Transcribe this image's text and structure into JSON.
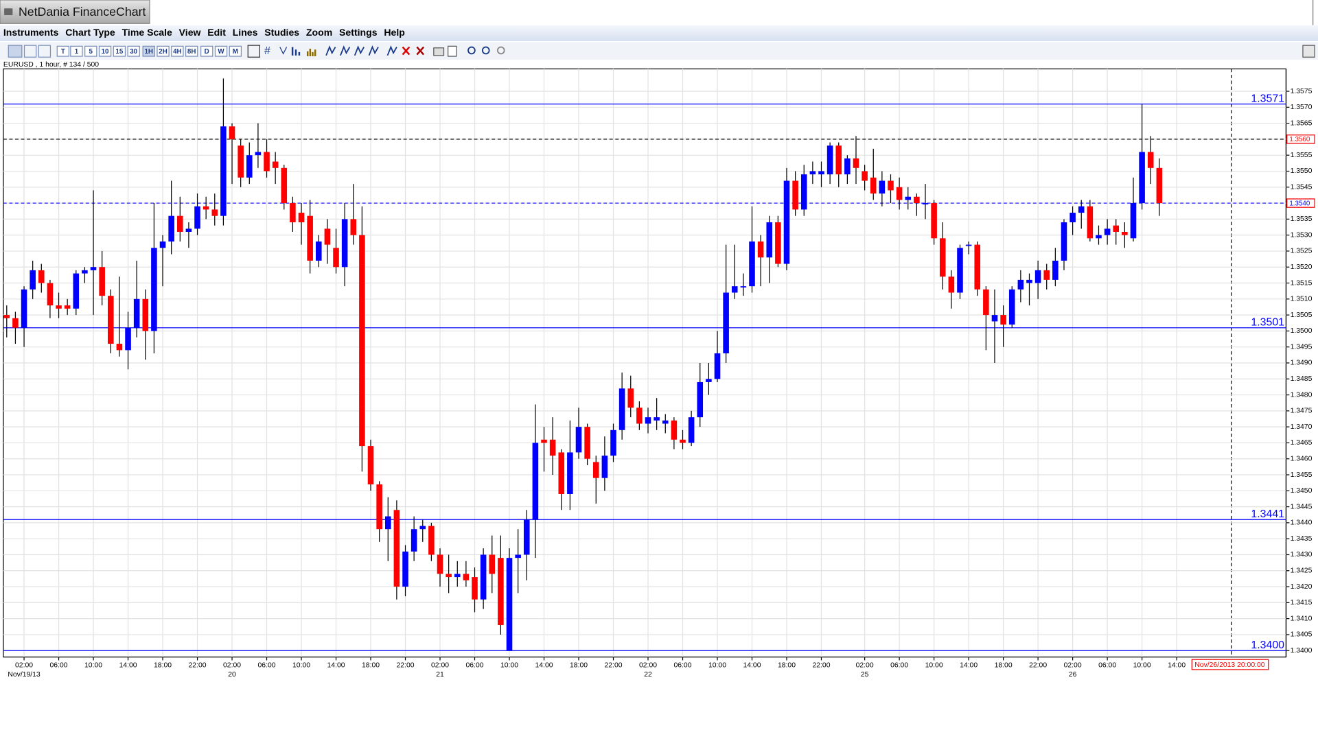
{
  "window_title": "NetDania FinanceChart",
  "menu": [
    "Instruments",
    "Chart Type",
    "Time Scale",
    "View",
    "Edit",
    "Lines",
    "Studies",
    "Zoom",
    "Settings",
    "Help"
  ],
  "toolbar": [
    "T",
    "1",
    "5",
    "10",
    "15",
    "30",
    "1H",
    "2H",
    "4H",
    "8H",
    "D",
    "W",
    "M"
  ],
  "chart_data": {
    "type": "candlestick",
    "instrument_info": "EURUSD , 1 hour, # 134 / 500",
    "up_color": "#0000ff",
    "down_color": "#ff0000",
    "grid": true,
    "ylim": [
      1.3398,
      1.3582
    ],
    "yticks": [
      {
        "value": 1.34,
        "label": "1.3400"
      },
      1.3405,
      {
        "value": 1.341,
        "label": "1.3410"
      },
      1.3415,
      {
        "value": 1.342,
        "label": "1.3420"
      },
      1.3425,
      {
        "value": 1.343,
        "label": "1.3430"
      },
      1.3435,
      {
        "value": 1.344,
        "label": "1.3440"
      },
      1.3445,
      {
        "value": 1.345,
        "label": "1.3450"
      },
      1.3455,
      {
        "value": 1.346,
        "label": "1.3460"
      },
      1.3465,
      {
        "value": 1.347,
        "label": "1.3470"
      },
      1.3475,
      {
        "value": 1.348,
        "label": "1.3480"
      },
      1.3485,
      {
        "value": 1.349,
        "label": "1.3490"
      },
      1.3495,
      {
        "value": 1.35,
        "label": "1.3500"
      },
      1.3505,
      {
        "value": 1.351,
        "label": "1.3510"
      },
      1.3515,
      {
        "value": 1.352,
        "label": "1.3520"
      },
      1.3525,
      {
        "value": 1.353,
        "label": "1.3530"
      },
      1.3535,
      {
        "value": 1.354,
        "label": "1.3540"
      },
      1.3545,
      {
        "value": 1.355,
        "label": "1.3550"
      },
      1.3555,
      {
        "value": 1.356,
        "label": "1.3560"
      },
      1.3565,
      {
        "value": 1.357,
        "label": "1.3570"
      },
      1.3575
    ],
    "hline_color": "#0000ff",
    "hlines": [
      1.3571,
      1.3501,
      1.3441,
      {
        "value": 1.34,
        "label": "1.3400"
      }
    ],
    "price_markers": [
      {
        "value": 1.356,
        "label": "1.3560",
        "line_color": "#000000",
        "text_color": "#ff0000"
      },
      {
        "value": 1.354,
        "label": "1.3540",
        "line_color": "#0000ff",
        "text_color": "#0000ff"
      }
    ],
    "cursor_time": "Nov/26/2013 20:00:00",
    "categories": [
      null,
      null,
      "02:00",
      null,
      null,
      null,
      "06:00",
      null,
      null,
      null,
      "10:00",
      null,
      null,
      null,
      "14:00",
      null,
      null,
      null,
      "18:00",
      null,
      null,
      null,
      "22:00",
      null,
      null,
      null,
      "02:00",
      null,
      null,
      null,
      "06:00",
      null,
      null,
      null,
      "10:00",
      null,
      null,
      null,
      "14:00",
      null,
      null,
      null,
      "18:00",
      null,
      null,
      null,
      "22:00",
      null,
      null,
      null,
      "02:00",
      null,
      null,
      null,
      "06:00",
      null,
      null,
      null,
      "10:00",
      null,
      null,
      null,
      "14:00",
      null,
      null,
      null,
      "18:00",
      null,
      null,
      null,
      "22:00",
      null,
      null,
      null,
      "02:00",
      null,
      null,
      null,
      "06:00",
      null,
      null,
      null,
      "10:00",
      null,
      null,
      null,
      "14:00",
      null,
      null,
      null,
      "18:00",
      null,
      null,
      null,
      "22:00",
      null,
      null,
      null,
      null,
      "02:00",
      null,
      null,
      null,
      "06:00",
      null,
      null,
      null,
      "10:00",
      null,
      null,
      null,
      "14:00",
      null,
      null,
      null,
      "18:00",
      null,
      null,
      null,
      "22:00",
      null,
      null,
      null,
      "02:00",
      null,
      null,
      null,
      "06:00",
      null,
      null,
      null,
      "10:00",
      null,
      null,
      null,
      "14:00"
    ],
    "date_labels": [
      null,
      null,
      "Nov/19/13",
      null,
      null,
      null,
      null,
      null,
      null,
      null,
      null,
      null,
      null,
      null,
      null,
      null,
      null,
      null,
      null,
      null,
      null,
      null,
      null,
      null,
      null,
      null,
      "20",
      null,
      null,
      null,
      null,
      null,
      null,
      null,
      null,
      null,
      null,
      null,
      null,
      null,
      null,
      null,
      null,
      null,
      null,
      null,
      null,
      null,
      null,
      null,
      "21",
      null,
      null,
      null,
      null,
      null,
      null,
      null,
      null,
      null,
      null,
      null,
      null,
      null,
      null,
      null,
      null,
      null,
      null,
      null,
      null,
      null,
      null,
      null,
      "22",
      null,
      null,
      null,
      null,
      null,
      null,
      null,
      null,
      null,
      null,
      null,
      null,
      null,
      null,
      null,
      null,
      null,
      null,
      null,
      null,
      null,
      null,
      null,
      null,
      "25",
      null,
      null,
      null,
      null,
      null,
      null,
      null,
      null,
      null,
      null,
      null,
      null,
      null,
      null,
      null,
      null,
      null,
      null,
      null,
      null,
      null,
      null,
      null,
      "26",
      null,
      null,
      null,
      null,
      null,
      null,
      null,
      null,
      null,
      null,
      null,
      null
    ],
    "ohlc": [
      [
        1.3505,
        1.3508,
        1.3498,
        1.3504
      ],
      [
        1.3504,
        1.3506,
        1.3496,
        1.3501
      ],
      [
        1.3501,
        1.3514,
        1.3495,
        1.3513
      ],
      [
        1.3513,
        1.3522,
        1.351,
        1.3519
      ],
      [
        1.3519,
        1.3521,
        1.3512,
        1.3515
      ],
      [
        1.3515,
        1.3516,
        1.3504,
        1.3508
      ],
      [
        1.3508,
        1.3512,
        1.3504,
        1.3507
      ],
      [
        1.3508,
        1.351,
        1.3505,
        1.3507
      ],
      [
        1.3507,
        1.3519,
        1.3505,
        1.3518
      ],
      [
        1.3518,
        1.352,
        1.3515,
        1.3519
      ],
      [
        1.3519,
        1.3544,
        1.3505,
        1.352
      ],
      [
        1.352,
        1.3525,
        1.3508,
        1.3511
      ],
      [
        1.3511,
        1.3513,
        1.3493,
        1.3496
      ],
      [
        1.3496,
        1.3517,
        1.3492,
        1.3494
      ],
      [
        1.3494,
        1.3506,
        1.3488,
        1.3501
      ],
      [
        1.3501,
        1.3522,
        1.3498,
        1.351
      ],
      [
        1.351,
        1.3513,
        1.3491,
        1.35
      ],
      [
        1.35,
        1.354,
        1.3493,
        1.3526
      ],
      [
        1.3526,
        1.353,
        1.3514,
        1.3528
      ],
      [
        1.3528,
        1.3547,
        1.3524,
        1.3536
      ],
      [
        1.3536,
        1.3542,
        1.3528,
        1.3531
      ],
      [
        1.3531,
        1.3534,
        1.3526,
        1.3532
      ],
      [
        1.3532,
        1.3543,
        1.353,
        1.3539
      ],
      [
        1.3539,
        1.3542,
        1.3535,
        1.3538
      ],
      [
        1.3538,
        1.3543,
        1.3533,
        1.3536
      ],
      [
        1.3536,
        1.3579,
        1.3533,
        1.3564
      ],
      [
        1.3564,
        1.3565,
        1.3546,
        1.356
      ],
      [
        1.3558,
        1.356,
        1.3545,
        1.3548
      ],
      [
        1.3548,
        1.3559,
        1.3546,
        1.3555
      ],
      [
        1.3555,
        1.3565,
        1.3551,
        1.3556
      ],
      [
        1.3556,
        1.356,
        1.3548,
        1.355
      ],
      [
        1.3553,
        1.3556,
        1.3546,
        1.3551
      ],
      [
        1.3551,
        1.3552,
        1.3538,
        1.354
      ],
      [
        1.354,
        1.3542,
        1.3531,
        1.3534
      ],
      [
        1.3537,
        1.354,
        1.3527,
        1.3534
      ],
      [
        1.3536,
        1.3541,
        1.3518,
        1.3522
      ],
      [
        1.3522,
        1.353,
        1.352,
        1.3528
      ],
      [
        1.3532,
        1.3535,
        1.3521,
        1.3527
      ],
      [
        1.3526,
        1.3532,
        1.3518,
        1.352
      ],
      [
        1.352,
        1.354,
        1.3514,
        1.3535
      ],
      [
        1.3535,
        1.3546,
        1.3527,
        1.353
      ],
      [
        1.353,
        1.3539,
        1.3456,
        1.3464
      ],
      [
        1.3464,
        1.3466,
        1.345,
        1.3452
      ],
      [
        1.3452,
        1.3453,
        1.3434,
        1.3438
      ],
      [
        1.3438,
        1.3448,
        1.3428,
        1.3442
      ],
      [
        1.3444,
        1.3447,
        1.3416,
        1.342
      ],
      [
        1.342,
        1.3433,
        1.3417,
        1.3431
      ],
      [
        1.3431,
        1.3442,
        1.3428,
        1.3438
      ],
      [
        1.3438,
        1.3441,
        1.3434,
        1.3439
      ],
      [
        1.3439,
        1.344,
        1.3428,
        1.343
      ],
      [
        1.343,
        1.3432,
        1.342,
        1.3424
      ],
      [
        1.3424,
        1.343,
        1.3418,
        1.3423
      ],
      [
        1.3423,
        1.3428,
        1.342,
        1.3424
      ],
      [
        1.3424,
        1.3428,
        1.342,
        1.3422
      ],
      [
        1.3423,
        1.3426,
        1.3412,
        1.3416
      ],
      [
        1.3416,
        1.3432,
        1.3413,
        1.343
      ],
      [
        1.343,
        1.3436,
        1.3418,
        1.3424
      ],
      [
        1.3429,
        1.3436,
        1.3405,
        1.3408
      ],
      [
        1.34,
        1.3432,
        1.34,
        1.3429
      ],
      [
        1.3429,
        1.3438,
        1.3418,
        1.343
      ],
      [
        1.343,
        1.3444,
        1.3422,
        1.3441
      ],
      [
        1.3441,
        1.3477,
        1.3429,
        1.3465
      ],
      [
        1.3466,
        1.347,
        1.3456,
        1.3465
      ],
      [
        1.3466,
        1.3473,
        1.3455,
        1.3461
      ],
      [
        1.3462,
        1.3463,
        1.3444,
        1.3449
      ],
      [
        1.3449,
        1.3472,
        1.3444,
        1.3462
      ],
      [
        1.3462,
        1.3476,
        1.346,
        1.347
      ],
      [
        1.347,
        1.3471,
        1.3458,
        1.346
      ],
      [
        1.3459,
        1.3461,
        1.3446,
        1.3454
      ],
      [
        1.3454,
        1.3467,
        1.345,
        1.3461
      ],
      [
        1.3461,
        1.3471,
        1.3459,
        1.3469
      ],
      [
        1.3469,
        1.3487,
        1.3466,
        1.3482
      ],
      [
        1.3482,
        1.3486,
        1.3473,
        1.3476
      ],
      [
        1.3476,
        1.3478,
        1.3469,
        1.3471
      ],
      [
        1.3471,
        1.3476,
        1.3468,
        1.3473
      ],
      [
        1.3472,
        1.3479,
        1.3469,
        1.3473
      ],
      [
        1.3471,
        1.3474,
        1.3468,
        1.3472
      ],
      [
        1.3472,
        1.3473,
        1.3463,
        1.3466
      ],
      [
        1.3466,
        1.3469,
        1.3463,
        1.3465
      ],
      [
        1.3465,
        1.3475,
        1.3464,
        1.3473
      ],
      [
        1.3473,
        1.349,
        1.347,
        1.3484
      ],
      [
        1.3484,
        1.349,
        1.348,
        1.3485
      ],
      [
        1.3485,
        1.35,
        1.3484,
        1.3493
      ],
      [
        1.3493,
        1.3527,
        1.349,
        1.3512
      ],
      [
        1.3512,
        1.3527,
        1.351,
        1.3514
      ],
      [
        1.3514,
        1.3518,
        1.3511,
        1.3514
      ],
      [
        1.3514,
        1.3539,
        1.3512,
        1.3528
      ],
      [
        1.3528,
        1.353,
        1.3514,
        1.3523
      ],
      [
        1.3523,
        1.3536,
        1.3515,
        1.3534
      ],
      [
        1.3534,
        1.3536,
        1.352,
        1.3521
      ],
      [
        1.3521,
        1.3551,
        1.3519,
        1.3547
      ],
      [
        1.3547,
        1.355,
        1.3536,
        1.3538
      ],
      [
        1.3538,
        1.3552,
        1.3536,
        1.3549
      ],
      [
        1.3549,
        1.3553,
        1.3546,
        1.355
      ],
      [
        1.3549,
        1.3553,
        1.3545,
        1.355
      ],
      [
        1.3549,
        1.3559,
        1.3546,
        1.3558
      ],
      [
        1.3558,
        1.3559,
        1.3545,
        1.3549
      ],
      [
        1.3549,
        1.3555,
        1.3546,
        1.3554
      ],
      [
        1.3554,
        1.3561,
        1.3546,
        1.3551
      ],
      [
        1.355,
        1.3552,
        1.3544,
        1.3547
      ],
      [
        1.3548,
        1.3557,
        1.3541,
        1.3543
      ],
      [
        1.3543,
        1.355,
        1.3539,
        1.3547
      ],
      [
        1.3547,
        1.3549,
        1.354,
        1.3544
      ],
      [
        1.3545,
        1.3548,
        1.3538,
        1.3541
      ],
      [
        1.3541,
        1.3545,
        1.3538,
        1.3542
      ],
      [
        1.3542,
        1.3543,
        1.3536,
        1.354
      ],
      [
        1.354,
        1.3546,
        1.3535,
        1.354
      ],
      [
        1.354,
        1.3541,
        1.3527,
        1.3529
      ],
      [
        1.3529,
        1.3534,
        1.3513,
        1.3517
      ],
      [
        1.3517,
        1.3519,
        1.3507,
        1.3512
      ],
      [
        1.3512,
        1.3527,
        1.351,
        1.3526
      ],
      [
        1.3527,
        1.3528,
        1.3524,
        1.3527
      ],
      [
        1.3527,
        1.3528,
        1.3511,
        1.3513
      ],
      [
        1.3513,
        1.3514,
        1.3494,
        1.3505
      ],
      [
        1.3503,
        1.3513,
        1.349,
        1.3505
      ],
      [
        1.3505,
        1.3508,
        1.3495,
        1.3502
      ],
      [
        1.3502,
        1.3514,
        1.3501,
        1.3513
      ],
      [
        1.3513,
        1.3519,
        1.3509,
        1.3516
      ],
      [
        1.3515,
        1.3518,
        1.3508,
        1.3516
      ],
      [
        1.3515,
        1.3522,
        1.351,
        1.3519
      ],
      [
        1.3519,
        1.3521,
        1.3513,
        1.3516
      ],
      [
        1.3516,
        1.3526,
        1.3514,
        1.3522
      ],
      [
        1.3522,
        1.3535,
        1.3519,
        1.3534
      ],
      [
        1.3534,
        1.3539,
        1.353,
        1.3537
      ],
      [
        1.3537,
        1.3541,
        1.3532,
        1.3539
      ],
      [
        1.3539,
        1.3541,
        1.3528,
        1.3529
      ],
      [
        1.3529,
        1.3533,
        1.3527,
        1.353
      ],
      [
        1.353,
        1.3535,
        1.3527,
        1.3532
      ],
      [
        1.3533,
        1.3535,
        1.3527,
        1.3531
      ],
      [
        1.3531,
        1.3534,
        1.3526,
        1.353
      ],
      [
        1.3529,
        1.3548,
        1.3528,
        1.354
      ],
      [
        1.354,
        1.3571,
        1.3538,
        1.3556
      ],
      [
        1.3556,
        1.3561,
        1.3546,
        1.3551
      ],
      [
        1.3551,
        1.3554,
        1.3536,
        1.354
      ],
      null,
      null
    ]
  }
}
